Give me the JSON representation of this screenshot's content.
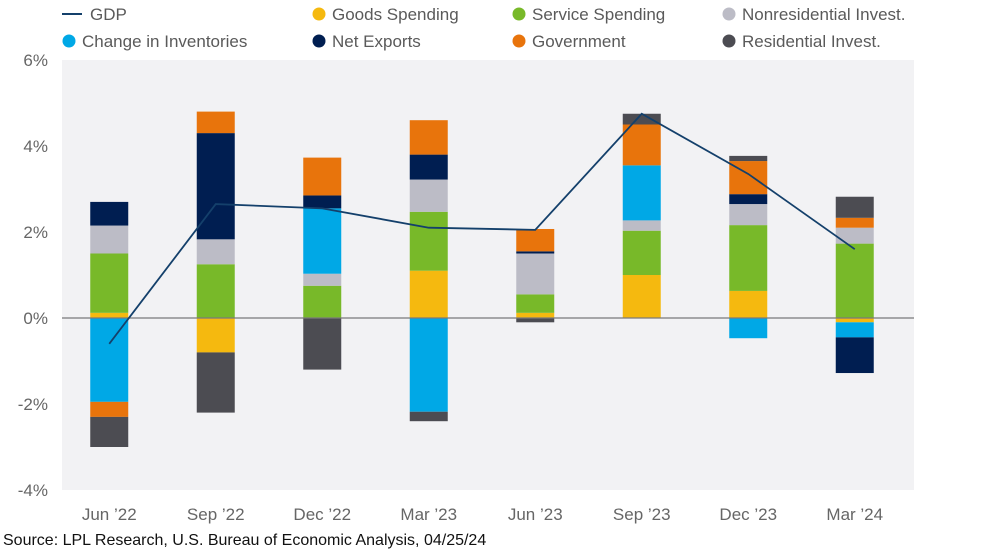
{
  "source": "Source: LPL Research, U.S. Bureau of Economic Analysis, 04/25/24",
  "chart_data": {
    "type": "bar",
    "stacked": true,
    "title": "",
    "xlabel": "",
    "ylabel": "",
    "ylim": [
      -4,
      6
    ],
    "yticks": [
      6,
      4,
      2,
      0,
      -2,
      -4
    ],
    "ytick_labels": [
      "6%",
      "4%",
      "2%",
      "0%",
      "-2%",
      "-4%"
    ],
    "grid": false,
    "legend_position": "top",
    "categories": [
      "Jun ’22",
      "Sep ’22",
      "Dec ’22",
      "Mar ’23",
      "Jun ’23",
      "Sep ’23",
      "Dec ’23",
      "Mar ’24"
    ],
    "series": [
      {
        "name": "Goods Spending",
        "color": "#f5b90f",
        "values": [
          0.12,
          -0.8,
          0.0,
          1.1,
          0.12,
          1.0,
          0.63,
          -0.1
        ]
      },
      {
        "name": "Service Spending",
        "color": "#78b929",
        "values": [
          1.38,
          1.25,
          0.75,
          1.37,
          0.43,
          1.03,
          1.53,
          1.73
        ]
      },
      {
        "name": "Nonresidential Invest.",
        "color": "#bcbcc6",
        "values": [
          0.65,
          0.58,
          0.28,
          0.75,
          0.95,
          0.24,
          0.49,
          0.37
        ]
      },
      {
        "name": "Change in Inventories",
        "color": "#00a8e6",
        "values": [
          -1.95,
          0.0,
          1.52,
          -2.18,
          0.0,
          1.28,
          -0.47,
          -0.35
        ]
      },
      {
        "name": "Net Exports",
        "color": "#001e51",
        "values": [
          0.55,
          2.47,
          0.3,
          0.58,
          0.05,
          0.0,
          0.23,
          -0.83
        ]
      },
      {
        "name": "Government",
        "color": "#e8740c",
        "values": [
          -0.35,
          0.5,
          0.88,
          0.8,
          0.52,
          0.95,
          0.77,
          0.23
        ]
      },
      {
        "name": "Residential Invest.",
        "color": "#4c4c52",
        "values": [
          -0.7,
          -1.4,
          -1.2,
          -0.22,
          -0.1,
          0.25,
          0.12,
          0.49
        ]
      }
    ],
    "line": {
      "name": "GDP",
      "color": "#14406b",
      "values": [
        -0.6,
        2.65,
        2.55,
        2.1,
        2.05,
        4.75,
        3.35,
        1.6
      ]
    },
    "legend": [
      {
        "name": "GDP",
        "type": "line",
        "color": "#14406b"
      },
      {
        "name": "Goods Spending",
        "type": "dot",
        "color": "#f5b90f"
      },
      {
        "name": "Service Spending",
        "type": "dot",
        "color": "#78b929"
      },
      {
        "name": "Nonresidential Invest.",
        "type": "dot",
        "color": "#bcbcc6"
      },
      {
        "name": "Change in Inventories",
        "type": "dot",
        "color": "#00a8e6"
      },
      {
        "name": "Net Exports",
        "type": "dot",
        "color": "#001e51"
      },
      {
        "name": "Government",
        "type": "dot",
        "color": "#e8740c"
      },
      {
        "name": "Residential Invest.",
        "type": "dot",
        "color": "#4c4c52"
      }
    ]
  }
}
